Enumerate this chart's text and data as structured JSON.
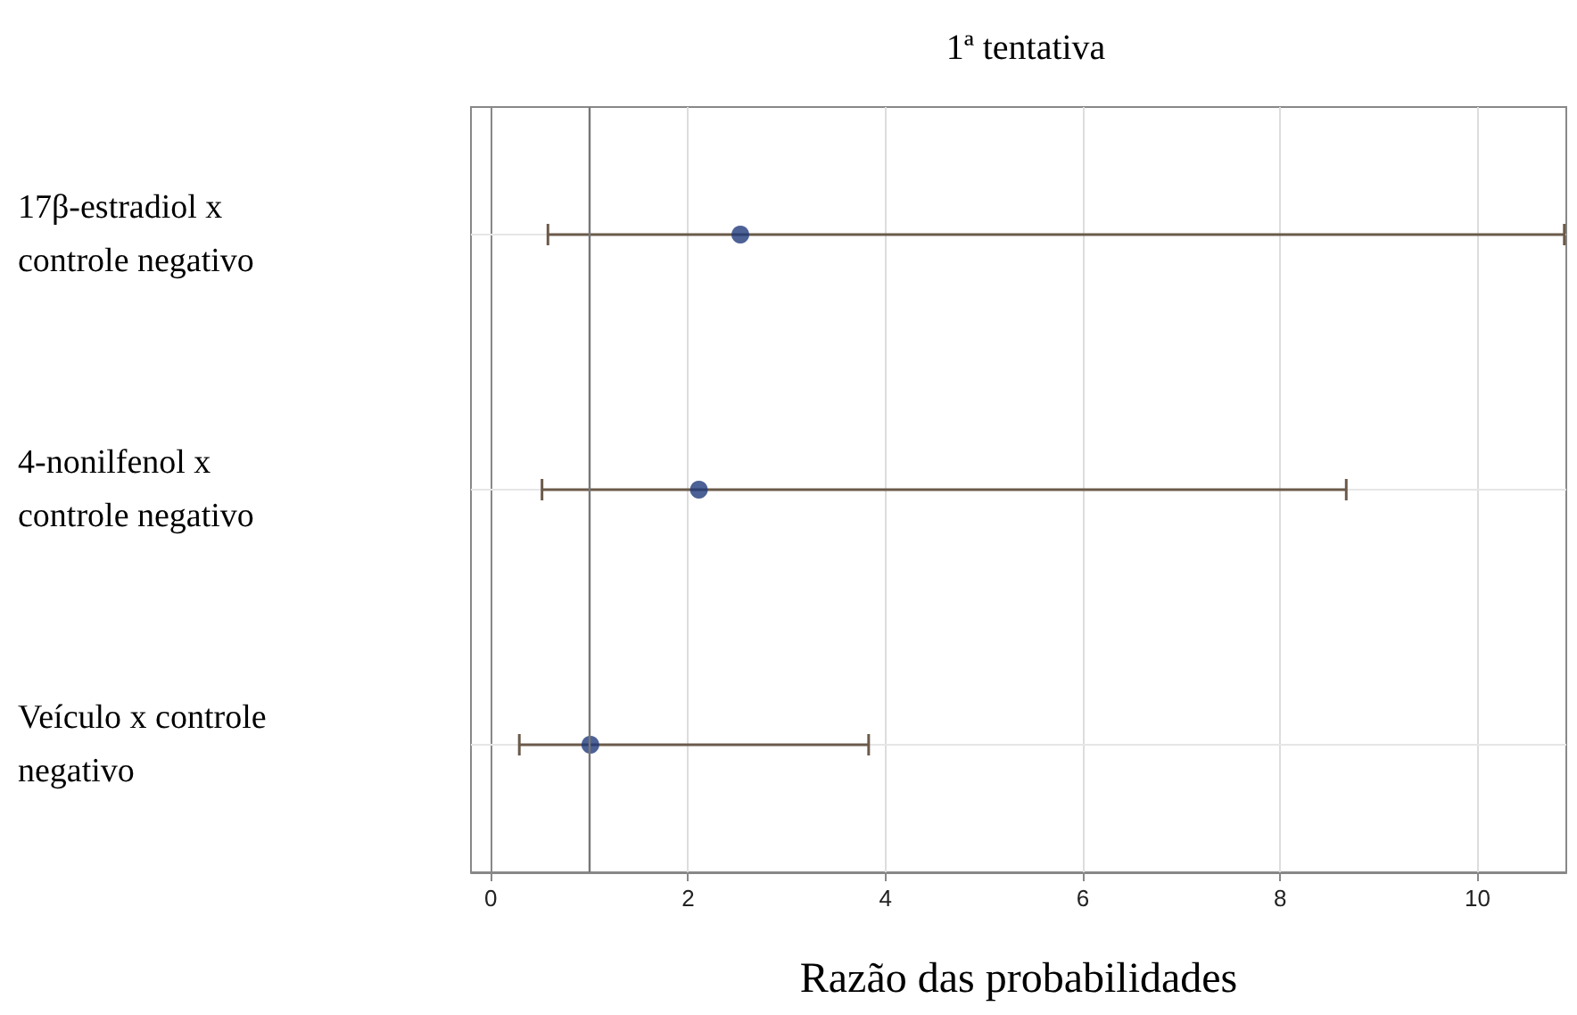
{
  "chart_data": {
    "type": "scatter",
    "title": "1ª tentativa",
    "xlabel": "Razão das probabilidades",
    "orientation": "horizontal",
    "categories": [
      "17β-estradiol x controle negativo",
      "4-nonilfenol x controle negativo",
      "Veículo x controle negativo"
    ],
    "series": [
      {
        "color": "#1f3a7a",
        "values": [
          2.53,
          2.11,
          1.01
        ],
        "errors": [
          [
            0.58,
            10.88
          ],
          [
            0.52,
            8.67
          ],
          [
            0.29,
            3.83
          ]
        ]
      }
    ],
    "xlim": [
      -0.2,
      10.9
    ],
    "xticks": [
      0,
      2,
      4,
      6,
      8,
      10
    ],
    "ref_lines": [
      {
        "axis": "x",
        "value": 1,
        "color": "#777777"
      }
    ],
    "grid": true,
    "marker": "circle"
  }
}
